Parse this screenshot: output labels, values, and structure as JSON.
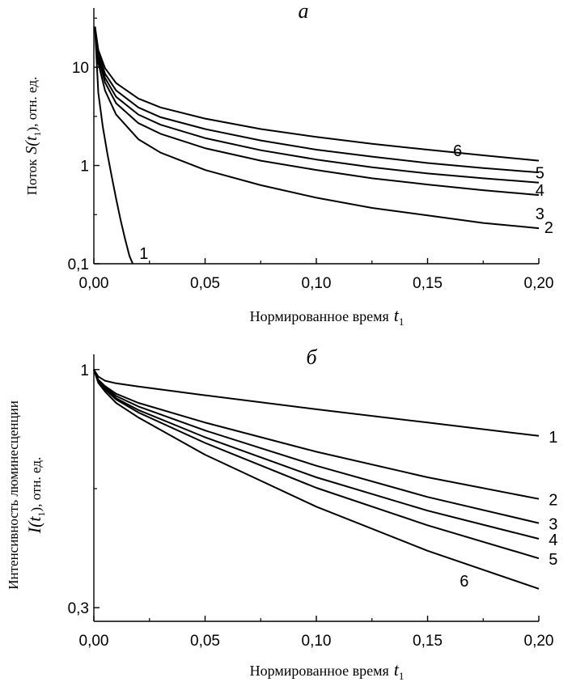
{
  "chart_data": [
    {
      "type": "line",
      "title": "а",
      "xlabel": "Нормированное время",
      "xlabel_var": "t",
      "xlabel_sub": "1",
      "ylabel_prefix": "Поток",
      "ylabel_var": "S(t",
      "ylabel_sub": "1",
      "ylabel_suffix": "),  отн. ед.",
      "y_scale": "log",
      "xlim": [
        0,
        0.2
      ],
      "ylim": [
        0.1,
        40
      ],
      "x_ticks": [
        0.0,
        0.05,
        0.1,
        0.15,
        0.2
      ],
      "x_tick_labels": [
        "0,00",
        "0,05",
        "0,10",
        "0,15",
        "0,20"
      ],
      "y_ticks": [
        0.1,
        1,
        10
      ],
      "y_tick_labels": [
        "0,1",
        "1",
        "10"
      ],
      "series": [
        {
          "name": "1",
          "x": [
            0.0005,
            0.002,
            0.004,
            0.006,
            0.008,
            0.01,
            0.012,
            0.014,
            0.016,
            0.0175
          ],
          "y": [
            25,
            5.5,
            2.5,
            1.35,
            0.78,
            0.46,
            0.28,
            0.18,
            0.12,
            0.1
          ],
          "label_at": [
            0.019,
            0.13
          ]
        },
        {
          "name": "2",
          "x": [
            0.0005,
            0.002,
            0.005,
            0.01,
            0.02,
            0.03,
            0.05,
            0.075,
            0.1,
            0.125,
            0.15,
            0.175,
            0.2
          ],
          "y": [
            25,
            11,
            5.8,
            3.3,
            1.85,
            1.35,
            0.9,
            0.63,
            0.47,
            0.37,
            0.31,
            0.26,
            0.23
          ],
          "label_at": [
            0.201,
            0.24
          ]
        },
        {
          "name": "3",
          "x": [
            0.0005,
            0.002,
            0.005,
            0.01,
            0.02,
            0.03,
            0.05,
            0.075,
            0.1,
            0.125,
            0.15,
            0.175,
            0.2
          ],
          "y": [
            25,
            12.5,
            7,
            4.3,
            2.7,
            2.1,
            1.5,
            1.12,
            0.9,
            0.74,
            0.64,
            0.56,
            0.5
          ],
          "label_at": [
            0.197,
            0.33
          ]
        },
        {
          "name": "4",
          "x": [
            0.0005,
            0.002,
            0.005,
            0.01,
            0.02,
            0.03,
            0.05,
            0.075,
            0.1,
            0.125,
            0.15,
            0.175,
            0.2
          ],
          "y": [
            25,
            13,
            7.8,
            5,
            3.3,
            2.6,
            1.9,
            1.43,
            1.15,
            0.96,
            0.83,
            0.74,
            0.67
          ],
          "label_at": [
            0.197,
            0.57
          ]
        },
        {
          "name": "5",
          "x": [
            0.0005,
            0.002,
            0.005,
            0.01,
            0.02,
            0.03,
            0.05,
            0.075,
            0.1,
            0.125,
            0.15,
            0.175,
            0.2
          ],
          "y": [
            25,
            14,
            8.6,
            5.8,
            3.9,
            3.1,
            2.35,
            1.8,
            1.45,
            1.23,
            1.06,
            0.94,
            0.85
          ],
          "label_at": [
            0.197,
            0.86
          ]
        },
        {
          "name": "6",
          "x": [
            0.0005,
            0.002,
            0.005,
            0.01,
            0.02,
            0.03,
            0.05,
            0.075,
            0.1,
            0.125,
            0.15,
            0.175,
            0.2
          ],
          "y": [
            26,
            15,
            9.8,
            6.9,
            4.8,
            3.9,
            3.0,
            2.35,
            1.95,
            1.66,
            1.45,
            1.27,
            1.12
          ],
          "label_at": [
            0.16,
            1.45
          ]
        }
      ]
    },
    {
      "type": "line",
      "title": "б",
      "xlabel": "Нормированное время",
      "xlabel_var": "t",
      "xlabel_sub": "1",
      "ylabel_line1": "Интенсивность люминесценции",
      "ylabel_var": "I(t",
      "ylabel_sub": "1",
      "ylabel_suffix": "),  отн. ед.",
      "y_scale": "log",
      "xlim": [
        0,
        0.2
      ],
      "ylim": [
        0.28,
        1.08
      ],
      "x_ticks": [
        0.0,
        0.05,
        0.1,
        0.15,
        0.2
      ],
      "x_tick_labels": [
        "0,00",
        "0,05",
        "0,10",
        "0,15",
        "0,20"
      ],
      "y_ticks": [
        0.3,
        1
      ],
      "y_tick_labels": [
        "0,3",
        "1"
      ],
      "series": [
        {
          "name": "1",
          "x": [
            0,
            0.002,
            0.005,
            0.01,
            0.02,
            0.05,
            0.1,
            0.15,
            0.2
          ],
          "y": [
            1.0,
            0.965,
            0.945,
            0.933,
            0.918,
            0.878,
            0.818,
            0.765,
            0.715
          ],
          "label_at": [
            0.203,
            0.715
          ]
        },
        {
          "name": "2",
          "x": [
            0,
            0.002,
            0.005,
            0.01,
            0.02,
            0.05,
            0.1,
            0.15,
            0.2
          ],
          "y": [
            1.0,
            0.95,
            0.92,
            0.885,
            0.845,
            0.765,
            0.66,
            0.58,
            0.52
          ],
          "label_at": [
            0.203,
            0.52
          ]
        },
        {
          "name": "3",
          "x": [
            0,
            0.002,
            0.005,
            0.01,
            0.02,
            0.05,
            0.1,
            0.15,
            0.2
          ],
          "y": [
            1.0,
            0.945,
            0.915,
            0.875,
            0.83,
            0.735,
            0.615,
            0.525,
            0.46
          ],
          "label_at": [
            0.203,
            0.46
          ]
        },
        {
          "name": "4",
          "x": [
            0,
            0.002,
            0.005,
            0.01,
            0.02,
            0.05,
            0.1,
            0.15,
            0.2
          ],
          "y": [
            1.0,
            0.94,
            0.91,
            0.865,
            0.815,
            0.71,
            0.58,
            0.49,
            0.425
          ],
          "label_at": [
            0.203,
            0.425
          ]
        },
        {
          "name": "5",
          "x": [
            0,
            0.002,
            0.005,
            0.01,
            0.02,
            0.05,
            0.1,
            0.15,
            0.2
          ],
          "y": [
            1.0,
            0.94,
            0.905,
            0.86,
            0.805,
            0.69,
            0.55,
            0.455,
            0.385
          ],
          "label_at": [
            0.203,
            0.385
          ]
        },
        {
          "name": "6",
          "x": [
            0,
            0.002,
            0.005,
            0.01,
            0.02,
            0.05,
            0.1,
            0.15,
            0.2
          ],
          "y": [
            1.0,
            0.935,
            0.895,
            0.845,
            0.785,
            0.65,
            0.5,
            0.4,
            0.33
          ],
          "label_at": [
            0.163,
            0.345
          ]
        }
      ]
    }
  ]
}
